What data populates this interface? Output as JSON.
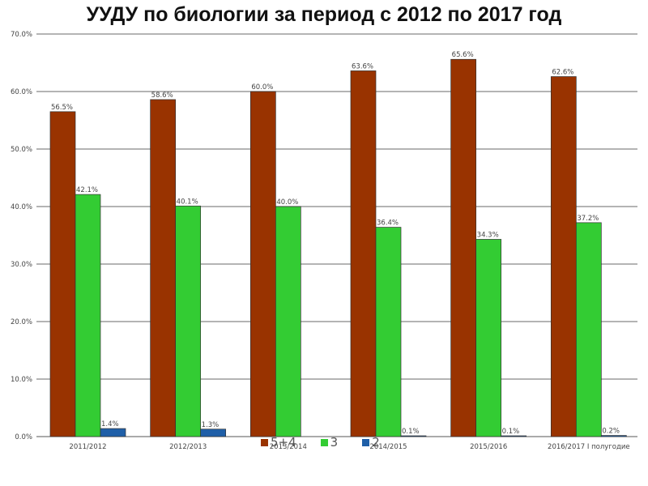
{
  "chart_data": {
    "type": "bar",
    "title": "УУДУ по биологии за период с 2012 по 2017 год",
    "categories": [
      "2011/2012",
      "2012/2013",
      "2013/2014",
      "2014/2015",
      "2015/2016",
      "2016/2017 I полугодие"
    ],
    "series": [
      {
        "name": "5+4",
        "color": "#993300",
        "values": [
          56.5,
          58.6,
          60.0,
          63.6,
          65.6,
          62.6
        ],
        "labels": [
          "56.5%",
          "58.6%",
          "60.0%",
          "63.6%",
          "65.6%",
          "62.6%"
        ]
      },
      {
        "name": "3",
        "color": "#33cc33",
        "values": [
          42.1,
          40.1,
          40.0,
          36.4,
          34.3,
          37.2
        ],
        "labels": [
          "42.1%",
          "40.1%",
          "40.0%",
          "36.4%",
          "34.3%",
          "37.2%"
        ]
      },
      {
        "name": "2",
        "color": "#1f5fa8",
        "values": [
          1.4,
          1.3,
          0,
          0.1,
          0.1,
          0.2
        ],
        "labels": [
          "1.4%",
          "1.3%",
          "",
          "0.1%",
          "0.1%",
          "0.2%"
        ]
      }
    ],
    "ylim": [
      0,
      70
    ],
    "yticks": [
      "0.0%",
      "10.0%",
      "20.0%",
      "30.0%",
      "40.0%",
      "50.0%",
      "60.0%",
      "70.0%"
    ],
    "xlabel": "",
    "ylabel": "",
    "grid": true,
    "legend_position": "bottom"
  }
}
